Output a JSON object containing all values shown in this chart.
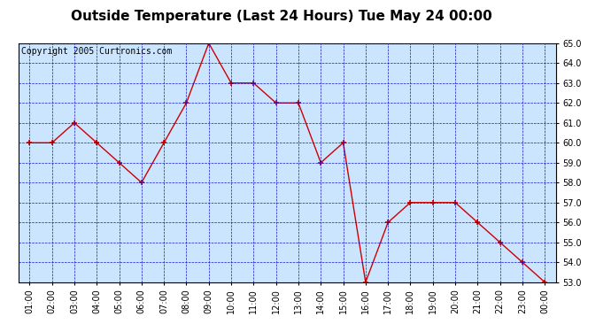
{
  "title": "Outside Temperature (Last 24 Hours) Tue May 24 00:00",
  "copyright_text": "Copyright 2005 Curtronics.com",
  "x_labels": [
    "01:00",
    "02:00",
    "03:00",
    "04:00",
    "05:00",
    "06:00",
    "07:00",
    "08:00",
    "09:00",
    "10:00",
    "11:00",
    "12:00",
    "13:00",
    "14:00",
    "15:00",
    "16:00",
    "17:00",
    "18:00",
    "19:00",
    "20:00",
    "21:00",
    "22:00",
    "23:00",
    "00:00"
  ],
  "y_values": [
    60.0,
    60.0,
    61.0,
    60.0,
    59.0,
    58.0,
    60.0,
    62.0,
    65.0,
    63.0,
    63.0,
    62.0,
    62.0,
    59.0,
    60.0,
    53.0,
    56.0,
    57.0,
    57.0,
    57.0,
    56.0,
    55.0,
    54.0,
    53.0
  ],
  "line_color": "#cc0000",
  "marker_color": "#cc0000",
  "marker_style": "+",
  "marker_size": 5,
  "plot_bg_color": "#cce5ff",
  "outer_bg_color": "#ffffff",
  "grid_color": "#0000cc",
  "title_fontsize": 11,
  "tick_fontsize": 7,
  "copyright_fontsize": 7,
  "ylim": [
    53.0,
    65.0
  ],
  "yticks": [
    53.0,
    54.0,
    55.0,
    56.0,
    57.0,
    58.0,
    59.0,
    60.0,
    61.0,
    62.0,
    63.0,
    64.0,
    65.0
  ]
}
